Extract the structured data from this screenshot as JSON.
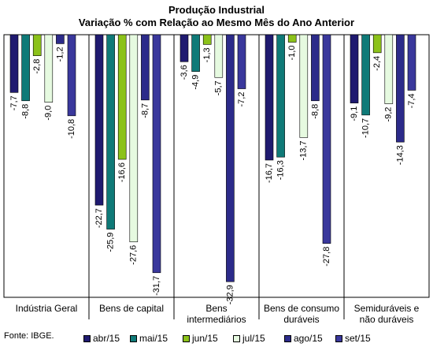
{
  "chart_data": {
    "type": "bar",
    "title": "Produção Industrial",
    "subtitle": "Variação % com Relação ao Mesmo Mês do Ano Anterior",
    "categories": [
      [
        "Indústria Geral"
      ],
      [
        "Bens de capital"
      ],
      [
        "Bens",
        "intermediários"
      ],
      [
        "Bens de consumo",
        "duráveis"
      ],
      [
        "Semiduráveis e",
        "não duráveis"
      ]
    ],
    "series": [
      {
        "name": "abr/15",
        "color": "#1F1A70",
        "values": [
          -7.7,
          -22.7,
          -3.6,
          -16.7,
          -9.1
        ]
      },
      {
        "name": "mai/15",
        "color": "#0F7A78",
        "values": [
          -8.8,
          -25.9,
          -4.9,
          -16.3,
          -10.7
        ]
      },
      {
        "name": "jun/15",
        "color": "#8CC21A",
        "values": [
          -2.8,
          -16.6,
          -1.3,
          -1.0,
          -2.4
        ]
      },
      {
        "name": "jul/15",
        "color": "#E6FAE0",
        "values": [
          -9.0,
          -27.6,
          -5.7,
          -13.7,
          -9.2
        ]
      },
      {
        "name": "ago/15",
        "color": "#2C2B8A",
        "values": [
          -1.2,
          -8.7,
          -32.9,
          -8.8,
          -14.3
        ]
      },
      {
        "name": "set/15",
        "color": "#3A389C",
        "values": [
          -10.8,
          -31.7,
          -7.2,
          -27.8,
          -7.4
        ]
      }
    ],
    "data_labels": [
      [
        "-7,7",
        "-22,7",
        "-3,6",
        "-16,7",
        "-9,1"
      ],
      [
        "-8,8",
        "-25,9",
        "-4,9",
        "-16,3",
        "-10,7"
      ],
      [
        "-2,8",
        "-16,6",
        "-1,3",
        "-1,0",
        "-2,4"
      ],
      [
        "-9,0",
        "-27,6",
        "-5,7",
        "-13,7",
        "-9,2"
      ],
      [
        "-1,2",
        "-8,7",
        "-32,9",
        "-8,8",
        "-14,3"
      ],
      [
        "-10,8",
        "-31,7",
        "-7,2",
        "-27,8",
        "-7,4"
      ]
    ],
    "ylim": [
      -35,
      0
    ],
    "grid": false,
    "legend_position": "bottom"
  },
  "source": "Fonte: IBGE."
}
